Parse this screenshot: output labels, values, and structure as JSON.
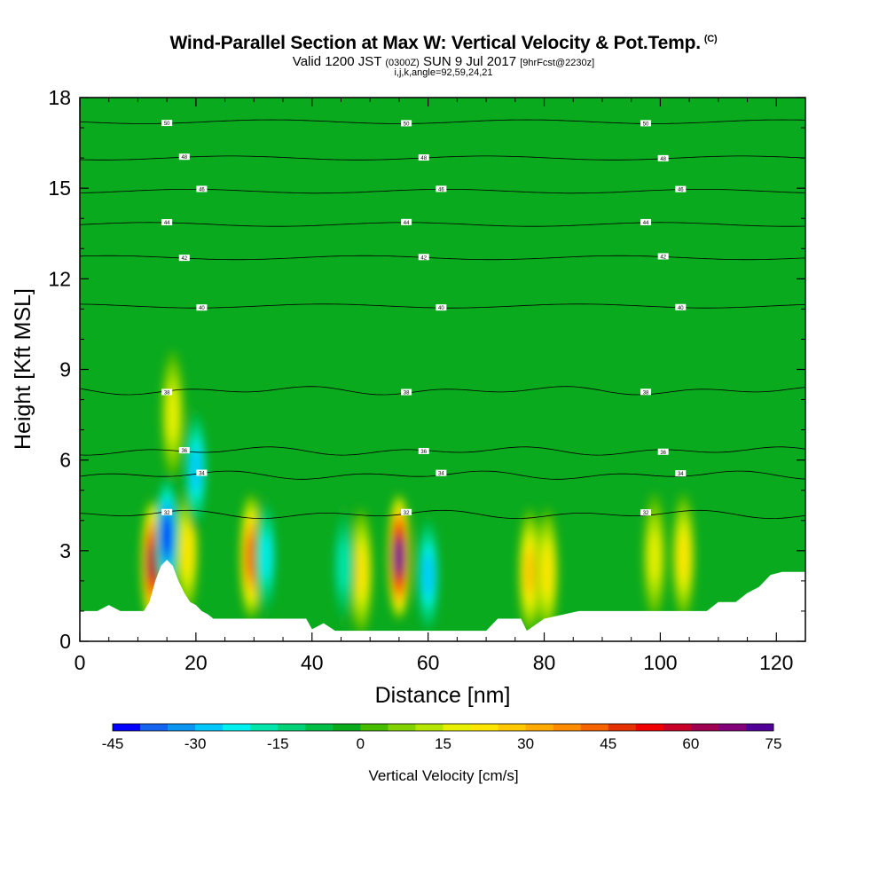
{
  "header": {
    "title": "Wind-Parallel Section at Max W: Vertical Velocity & Pot.Temp.",
    "copyright": "(C)",
    "valid_prefix": "Valid 1200 JST",
    "valid_utc": "(0300Z)",
    "valid_date": "SUN 9 Jul 2017",
    "forecast": "[9hrFcst@2230z]",
    "indices": "i,j,k,angle=92,59,24,21"
  },
  "chart_data": {
    "type": "heatmap",
    "xlabel": "Distance [nm]",
    "ylabel": "Height [Kft MSL]",
    "xlim": [
      0,
      125
    ],
    "ylim": [
      0,
      18
    ],
    "xticks": [
      "0",
      "20",
      "40",
      "60",
      "80",
      "100",
      "120"
    ],
    "yticks": [
      "0",
      "3",
      "6",
      "9",
      "12",
      "15",
      "18"
    ],
    "background_level_cm_s": 0,
    "updraft_cores": [
      {
        "x": 12.5,
        "z": 2.6,
        "w": 65
      },
      {
        "x": 16.0,
        "z": 7.5,
        "w": 20
      },
      {
        "x": 18.5,
        "z": 3.0,
        "w": 25
      },
      {
        "x": 29.5,
        "z": 2.8,
        "w": 45
      },
      {
        "x": 48.5,
        "z": 2.3,
        "w": 25
      },
      {
        "x": 55.0,
        "z": 2.8,
        "w": 75
      },
      {
        "x": 77.5,
        "z": 2.3,
        "w": 30
      },
      {
        "x": 80.5,
        "z": 2.3,
        "w": 25
      },
      {
        "x": 99.0,
        "z": 2.8,
        "w": 20
      },
      {
        "x": 104.0,
        "z": 2.8,
        "w": 25
      }
    ],
    "downdraft_cores": [
      {
        "x": 15.0,
        "z": 3.5,
        "w": -45
      },
      {
        "x": 20.0,
        "z": 5.7,
        "w": -30
      },
      {
        "x": 32.0,
        "z": 2.8,
        "w": -25
      },
      {
        "x": 45.5,
        "z": 2.5,
        "w": -20
      },
      {
        "x": 60.0,
        "z": 2.2,
        "w": -28
      }
    ],
    "theta_contours": [
      {
        "level": "50",
        "z": 17.2
      },
      {
        "level": "48",
        "z": 16.0
      },
      {
        "level": "46",
        "z": 14.9
      },
      {
        "level": "44",
        "z": 13.8
      },
      {
        "level": "42",
        "z": 12.7
      },
      {
        "level": "40",
        "z": 11.1
      },
      {
        "level": "38",
        "z": 8.3
      },
      {
        "level": "36",
        "z": 6.3
      },
      {
        "level": "34",
        "z": 5.5
      },
      {
        "level": "32",
        "z": 4.2
      }
    ],
    "colorbar": {
      "label": "Vertical Velocity [cm/s]",
      "ticks": [
        "-45",
        "-30",
        "-15",
        "0",
        "15",
        "30",
        "45",
        "60",
        "75"
      ],
      "colors": [
        "#0000ff",
        "#1464f0",
        "#0a96f0",
        "#00c8ff",
        "#00f0f0",
        "#00e6aa",
        "#00d278",
        "#00be46",
        "#0aaa1e",
        "#46bb00",
        "#82d200",
        "#b4e600",
        "#e6f000",
        "#ffe600",
        "#ffc800",
        "#ffaa00",
        "#ff8c00",
        "#f56400",
        "#e63200",
        "#f00000",
        "#c80028",
        "#a00050",
        "#820078",
        "#500096"
      ]
    },
    "terrain_kft": [
      [
        0,
        1.0
      ],
      [
        3,
        1.0
      ],
      [
        5,
        1.2
      ],
      [
        7,
        1.0
      ],
      [
        9,
        1.0
      ],
      [
        11,
        1.0
      ],
      [
        12,
        1.3
      ],
      [
        13,
        2.0
      ],
      [
        14,
        2.5
      ],
      [
        15,
        2.7
      ],
      [
        16,
        2.5
      ],
      [
        17,
        2.0
      ],
      [
        18,
        1.6
      ],
      [
        19,
        1.3
      ],
      [
        20,
        1.2
      ],
      [
        21,
        1.0
      ],
      [
        22,
        0.9
      ],
      [
        23,
        0.75
      ],
      [
        25,
        0.75
      ],
      [
        30,
        0.75
      ],
      [
        35,
        0.75
      ],
      [
        39,
        0.75
      ],
      [
        40,
        0.4
      ],
      [
        42,
        0.6
      ],
      [
        44,
        0.35
      ],
      [
        46,
        0.35
      ],
      [
        50,
        0.35
      ],
      [
        55,
        0.35
      ],
      [
        60,
        0.35
      ],
      [
        65,
        0.35
      ],
      [
        70,
        0.35
      ],
      [
        72,
        0.75
      ],
      [
        76,
        0.75
      ],
      [
        77,
        0.35
      ],
      [
        80,
        0.75
      ],
      [
        86,
        1.0
      ],
      [
        93,
        1.0
      ],
      [
        100,
        1.0
      ],
      [
        108,
        1.0
      ],
      [
        110,
        1.3
      ],
      [
        113,
        1.3
      ],
      [
        115,
        1.6
      ],
      [
        117,
        1.8
      ],
      [
        119,
        2.2
      ],
      [
        121,
        2.3
      ],
      [
        125,
        2.3
      ]
    ]
  }
}
